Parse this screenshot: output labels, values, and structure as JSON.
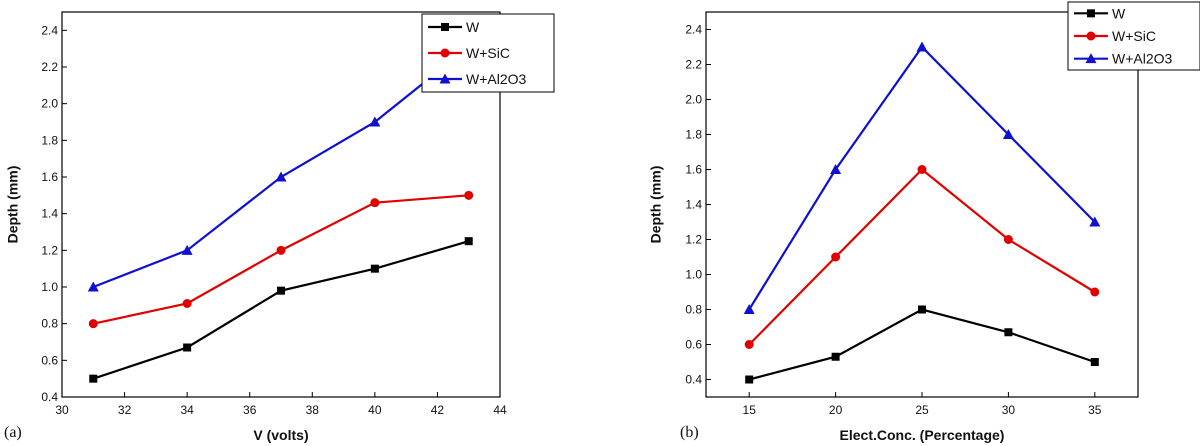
{
  "chart_data": [
    {
      "type": "line",
      "panel_label": "(a)",
      "xlabel": "V (volts)",
      "ylabel": "Depth (mm)",
      "xlim": [
        30,
        44
      ],
      "ylim": [
        0.4,
        2.5
      ],
      "xticks": [
        "30",
        "32",
        "34",
        "36",
        "38",
        "40",
        "42",
        "44"
      ],
      "yticks": [
        "0.4",
        "0.6",
        "0.8",
        "1.0",
        "1.2",
        "1.4",
        "1.6",
        "1.8",
        "2.0",
        "2.2",
        "2.4"
      ],
      "x": [
        31,
        34,
        37,
        40,
        43
      ],
      "series": [
        {
          "name": "W",
          "values": [
            0.5,
            0.67,
            0.98,
            1.1,
            1.25
          ],
          "color": "#000000",
          "marker": "square"
        },
        {
          "name": "W+SiC",
          "values": [
            0.8,
            0.91,
            1.2,
            1.46,
            1.5
          ],
          "color": "#e00000",
          "marker": "circle"
        },
        {
          "name": "W+Al2O3",
          "values": [
            1.0,
            1.2,
            1.6,
            1.9,
            2.31
          ],
          "color": "#1010d0",
          "marker": "triangle"
        }
      ],
      "legend_position": "top-right",
      "grid": false
    },
    {
      "type": "line",
      "panel_label": "(b)",
      "xlabel": "Elect.Conc. (Percentage)",
      "ylabel": "Depth (mm)",
      "xlim": [
        12.5,
        37.5
      ],
      "ylim": [
        0.3,
        2.5
      ],
      "xticks": [
        "15",
        "20",
        "25",
        "30",
        "35"
      ],
      "yticks": [
        "0.4",
        "0.6",
        "0.8",
        "1.0",
        "1.2",
        "1.4",
        "1.6",
        "1.8",
        "2.0",
        "2.2",
        "2.4"
      ],
      "x": [
        15,
        20,
        25,
        30,
        35
      ],
      "series": [
        {
          "name": "W",
          "values": [
            0.4,
            0.53,
            0.8,
            0.67,
            0.5
          ],
          "color": "#000000",
          "marker": "square"
        },
        {
          "name": "W+SiC",
          "values": [
            0.6,
            1.1,
            1.6,
            1.2,
            0.9
          ],
          "color": "#e00000",
          "marker": "circle"
        },
        {
          "name": "W+Al2O3",
          "values": [
            0.8,
            1.6,
            2.3,
            1.8,
            1.3
          ],
          "color": "#1010d0",
          "marker": "triangle"
        }
      ],
      "legend_position": "top-right",
      "grid": false
    }
  ]
}
